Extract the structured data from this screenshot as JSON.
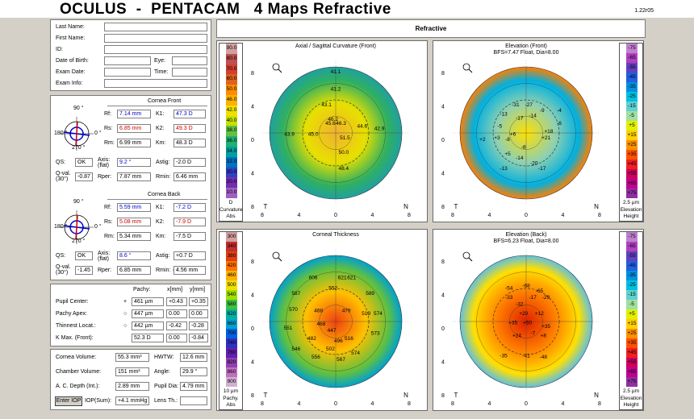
{
  "title": "OCULUS  -  PENTACAM   4 Maps Refractive",
  "version": "1.22r05",
  "header_bar": "Refractive",
  "patient": [
    {
      "label": "Last Name:"
    },
    {
      "label": "First Name:"
    },
    {
      "label": "ID:"
    }
  ],
  "dob_label": "Date of Birth:",
  "eye_label": "Eye:",
  "exam_date_label": "Exam Date:",
  "time_label": "Time:",
  "exam_info_label": "Exam Info:",
  "front": {
    "title": "Cornea Front",
    "rf": "7.14 mm",
    "rs": "6.85 mm",
    "rm": "6.99 mm",
    "k1": "47.3 D",
    "k2": "49.3 D",
    "km": "48.3 D",
    "qs": "OK",
    "axis": "9.2 °",
    "astig": "-2.0 D",
    "qval": "-0.87",
    "rper": "7.87 mm",
    "rmin": "6.46 mm"
  },
  "back": {
    "title": "Cornea Back",
    "rf": "5.59 mm",
    "rs": "5.08 mm",
    "rm": "5.34 mm",
    "k1": "-7.2 D",
    "k2": "-7.9 D",
    "km": "-7.5 D",
    "qs": "OK",
    "axis": "8.6 °",
    "astig": "+0.7 D",
    "qval": "-1.45",
    "rper": "6.85 mm",
    "rmin": "4.56 mm"
  },
  "labels": {
    "rf": "Rf:",
    "rs": "Rs:",
    "rm": "Rm:",
    "k1": "K1:",
    "k2": "K2:",
    "km": "Km:",
    "qs": "QS:",
    "axis": "Axis:",
    "axis2": "(flat)",
    "astig": "Astig:",
    "qval": "Q-val.",
    "qval2": "(30°)",
    "rper": "Rper:",
    "rmin": "Rmin:",
    "rmin2": "Rmin: ○",
    "deg90": "90 °",
    "deg270": "270 °",
    "deg0": "0 °",
    "deg180": "180 °"
  },
  "pachy": {
    "h_pachy": "Pachy:",
    "h_x": "x[mm]",
    "h_y": "y[mm]",
    "rows": [
      {
        "label": "Pupil Center:",
        "sym": "+",
        "pachy": "461 µm",
        "x": "+0.43",
        "y": "+0.35"
      },
      {
        "label": "Pachy Apex:",
        "sym": "○",
        "pachy": "447 µm",
        "x": "0.00",
        "y": "0.00"
      },
      {
        "label": "Thinnest Locat.:",
        "sym": "○",
        "pachy": "442 µm",
        "x": "-0.42",
        "y": "-0.28"
      },
      {
        "label": "K Max. (Front):",
        "sym": "",
        "pachy": "52.3 D",
        "x": "0.00",
        "y": "-0.84"
      }
    ]
  },
  "extra": {
    "cv_l": "Cornea Volume:",
    "cv": "55.3 mm³",
    "hwtw_l": "HWTW:",
    "hwtw": "12.6 mm",
    "chv_l": "Chamber Volume:",
    "chv": "151 mm³",
    "ang_l": "Angle:",
    "ang": "29.9 °",
    "acd_l": "A. C. Depth (Int.):",
    "acd": "2.89 mm",
    "pd_l": "Pupil Dia:",
    "pd": "4.79 mm",
    "enter_iop": "Enter IOP",
    "iop_l": "IOP(Sum):",
    "iop": "+4.1 mmHg",
    "lens_l": "Lens Th.:"
  },
  "maps": {
    "tl": {
      "title": "Axial / Sagittal Curvature (Front)",
      "od": "OD",
      "scale_label": "Curvature",
      "scale_unit": "Abs",
      "scale_top": "D",
      "scale": [
        "90.0",
        "80.0",
        "70.0",
        "60.0",
        "50.0",
        "46.0",
        "42.0",
        "40.0",
        "38.0",
        "36.0",
        "34.0",
        "32.0",
        "30.0",
        "20.0",
        "10.0"
      ],
      "values": [
        "41.2",
        "43.1",
        "46.2",
        "45.6",
        "46.3",
        "44.6",
        "42.9",
        "43.9",
        "45.0",
        "51.5",
        "50.0",
        "48.4",
        "41.1"
      ]
    },
    "tr": {
      "title": "Elevation (Front)",
      "subtitle": "BFS=7.47 Float, Dia=8.00",
      "od": "OD",
      "scale_label": "Elevation",
      "scale_unit": "Height",
      "scale_top": "2.5 µm",
      "scale": [
        "-75",
        "-65",
        "-55",
        "-45",
        "-35",
        "-25",
        "-15",
        "-5",
        "+5",
        "+15",
        "+25",
        "+35",
        "+45",
        "+55",
        "+65",
        "+75"
      ],
      "values": [
        "-31",
        "-27",
        "-9",
        "-13",
        "-14",
        "-5",
        "-8",
        "-17",
        "+2",
        "+6",
        "+3",
        "+21",
        "+18",
        "+5",
        "-8",
        "-13",
        "-14",
        "-20",
        "-17",
        "-4",
        "-6"
      ]
    },
    "bl": {
      "title": "Corneal Thickness",
      "od": "OD",
      "scale_label": "Pachy.",
      "scale_unit": "Abs",
      "scale_top": "10 µm",
      "scale": [
        "300",
        "340",
        "380",
        "420",
        "460",
        "500",
        "540",
        "580",
        "620",
        "660",
        "700",
        "740",
        "780",
        "820",
        "860",
        "900"
      ],
      "values": [
        "606",
        "621",
        "621",
        "587",
        "552",
        "589",
        "570",
        "468",
        "479",
        "519",
        "574",
        "551",
        "447",
        "468",
        "573",
        "482",
        "496",
        "516",
        "546",
        "567",
        "502",
        "574",
        "556"
      ]
    },
    "br": {
      "title": "Elevation (Back)",
      "subtitle": "BFS=6.23 Float, Dia=8.00",
      "od": "OD",
      "scale_label": "Elevation",
      "scale_unit": "Height",
      "scale_top": "2.5 µm",
      "scale": [
        "-75",
        "-65",
        "-55",
        "-45",
        "-35",
        "-25",
        "-15",
        "-5",
        "+5",
        "+15",
        "+25",
        "+35",
        "+45",
        "+55",
        "+65",
        "+75"
      ],
      "values": [
        "-54",
        "-68",
        "-65",
        "-33",
        "-17",
        "-29",
        "+20",
        "+12",
        "-32",
        "+35",
        "+50",
        "+35",
        "+24",
        "-7",
        "+8",
        "-35",
        "-41",
        "-48"
      ]
    }
  },
  "axis_ticks": [
    "8",
    "4",
    "0",
    "4",
    "8"
  ],
  "axis_letters": {
    "t": "T",
    "n": "N"
  },
  "colors": {
    "title_bg": "#ffffff",
    "panel_bg": "#ffffff",
    "red_value": "#cc0000",
    "blue_value": "#0000cc"
  }
}
